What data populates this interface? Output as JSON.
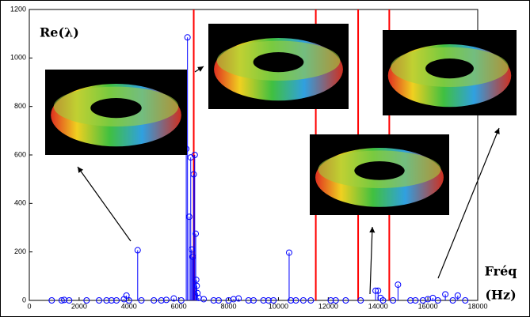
{
  "chart_data": {
    "type": "stem",
    "y_label": "Re(λ)",
    "x_label": [
      "Fréq",
      "(Hz)"
    ],
    "xlim": [
      0,
      18000
    ],
    "xticks": [
      0,
      2000,
      4000,
      6000,
      8000,
      10000,
      12000,
      14000,
      16000,
      18000
    ],
    "ylim": [
      0,
      1200
    ],
    "yticks": [
      0,
      200,
      400,
      600,
      800,
      1000,
      1200
    ],
    "color": "#0000ff",
    "vlines": {
      "color": "#ff0000",
      "x": [
        6600,
        11500,
        13200,
        14450
      ]
    },
    "x": [
      900,
      1300,
      1400,
      1600,
      2300,
      2800,
      3100,
      3300,
      3500,
      3800,
      3900,
      4000,
      4350,
      4500,
      5000,
      5300,
      5500,
      5800,
      6100,
      6300,
      6350,
      6420,
      6480,
      6520,
      6560,
      6600,
      6640,
      6680,
      6700,
      6720,
      6750,
      6800,
      7000,
      7400,
      7600,
      8000,
      8200,
      8400,
      8800,
      9000,
      9400,
      9600,
      9800,
      10430,
      10500,
      10700,
      11000,
      11300,
      12100,
      12300,
      12700,
      13300,
      13900,
      14000,
      14100,
      14200,
      14600,
      14800,
      15300,
      15500,
      15800,
      16000,
      16200,
      16400,
      16700,
      17000,
      17200,
      17500
    ],
    "values": [
      0,
      0,
      2,
      0,
      0,
      0,
      0,
      0,
      0,
      5,
      20,
      0,
      207,
      0,
      0,
      0,
      2,
      8,
      0,
      625,
      1085,
      345,
      590,
      210,
      180,
      520,
      600,
      275,
      85,
      60,
      30,
      10,
      5,
      0,
      0,
      0,
      5,
      8,
      0,
      0,
      0,
      0,
      0,
      197,
      0,
      0,
      0,
      0,
      0,
      0,
      0,
      0,
      40,
      40,
      10,
      0,
      0,
      65,
      0,
      0,
      0,
      5,
      10,
      0,
      25,
      0,
      20,
      0
    ]
  }
}
